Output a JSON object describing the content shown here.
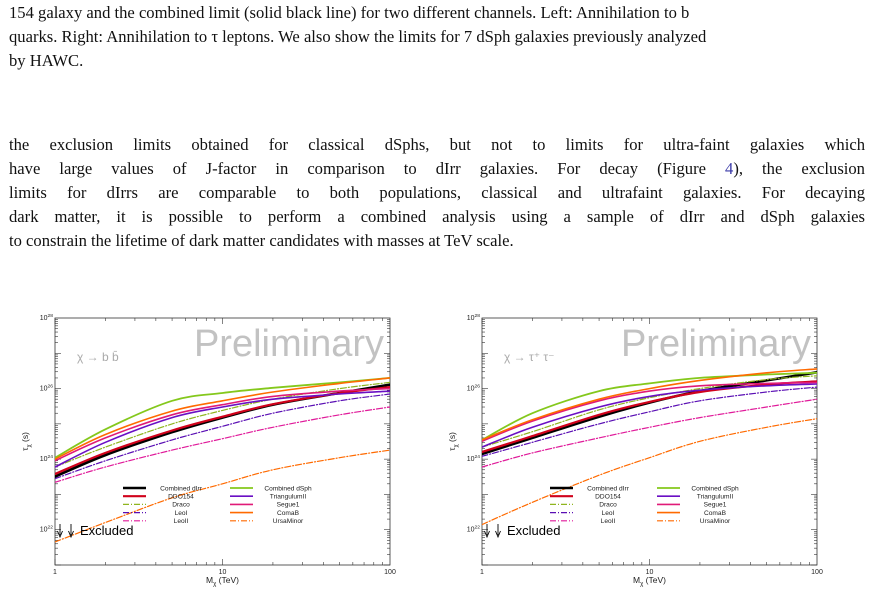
{
  "caption": {
    "lines": [
      "154 galaxy and the combined limit (solid black line) for two different channels. Left: Annihilation to b",
      "quarks. Right: Annihilation to τ leptons. We also show the limits for 7 dSph galaxies previously analyzed",
      "by HAWC."
    ]
  },
  "paragraph": {
    "line1": "the exclusion limits obtained for classical dSphs, but not to limits for ultra-faint galaxies which",
    "line2": "have large values of J-factor in comparison to dIrr galaxies. For decay (Figure",
    "line2_ref": "4",
    "line2_end": "), the exclusion",
    "line3": "limits for dIrrs are comparable to both populations, classical and ultrafaint galaxies. For decaying",
    "line4": "dark matter, it is possible to perform a combined analysis using a sample of dIrr and dSph galaxies",
    "line5": "to constrain the lifetime of dark matter candidates with masses at TeV scale."
  },
  "chart_data": [
    {
      "type": "line",
      "channel_label": "χ → b b̄",
      "watermark": "Preliminary",
      "xlabel": "Mχ (TeV)",
      "ylabel": "τχ (s)",
      "xscale": "log",
      "yscale": "log",
      "xlim": [
        1,
        100
      ],
      "ylim": [
        1e+21,
        1e+28
      ],
      "x_ticks": [
        "1",
        "10",
        "100"
      ],
      "y_ticks": [
        "10^22",
        "10^24",
        "10^26",
        "10^28"
      ],
      "excluded_label": "Excluded",
      "legend_location": "lower-right",
      "x": [
        1,
        2,
        5,
        10,
        20,
        50,
        100
      ],
      "series": [
        {
          "name": "Combined dIrr",
          "color": "#000000",
          "dash": "solid",
          "width": 2.6,
          "values": [
            3.2e+23,
            1.3e+24,
            5.8e+24,
            1.5e+25,
            3.5e+25,
            7.5e+25,
            1.3e+26
          ]
        },
        {
          "name": "DDO154",
          "color": "#d0021b",
          "dash": "solid",
          "width": 2.2,
          "values": [
            3.8e+23,
            1.5e+24,
            6.5e+24,
            1.6e+25,
            3.6e+25,
            7.4e+25,
            1.1e+26
          ]
        },
        {
          "name": "Draco",
          "color": "#8fb51e",
          "dash": "6,2,1,2",
          "width": 1.2,
          "values": [
            6e+23,
            2.2e+24,
            1e+25,
            2.4e+25,
            5e+25,
            1e+26,
            1.5e+26
          ]
        },
        {
          "name": "LeoI",
          "color": "#5a0fb4",
          "dash": "6,2,1,2",
          "width": 1.2,
          "values": [
            2.8e+23,
            9e+23,
            3.5e+24,
            8.5e+24,
            2e+25,
            4.5e+25,
            7e+25
          ]
        },
        {
          "name": "LeoII",
          "color": "#e01a9a",
          "dash": "6,2,1,2",
          "width": 1.2,
          "values": [
            2.2e+23,
            6e+23,
            1.8e+24,
            3.8e+24,
            8e+24,
            1.8e+25,
            3e+25
          ]
        },
        {
          "name": "Combined dSph",
          "color": "#84c81c",
          "dash": "solid",
          "width": 1.8,
          "values": [
            1.1e+24,
            7e+24,
            4.5e+25,
            7.5e+25,
            1.05e+26,
            1.5e+26,
            2e+26
          ]
        },
        {
          "name": "TriangulumII",
          "color": "#6a0fc4",
          "dash": "solid",
          "width": 1.6,
          "values": [
            6e+23,
            3e+24,
            1.5e+25,
            3e+25,
            5e+25,
            7e+25,
            8.5e+25
          ]
        },
        {
          "name": "Segue1",
          "color": "#e01a78",
          "dash": "solid",
          "width": 1.6,
          "values": [
            9e+23,
            4e+24,
            1.8e+25,
            3.5e+25,
            6e+25,
            8.5e+25,
            1e+26
          ]
        },
        {
          "name": "ComaB",
          "color": "#ff6a00",
          "dash": "solid",
          "width": 1.6,
          "values": [
            1e+24,
            5e+24,
            2.3e+25,
            4.5e+25,
            8e+25,
            1.4e+26,
            2e+26
          ]
        },
        {
          "name": "UrsaMinor",
          "color": "#ff6a00",
          "dash": "6,2,1,2",
          "width": 1.2,
          "values": [
            4.5e+21,
            1.6e+22,
            8e+22,
            2e+23,
            5e+23,
            1.1e+24,
            1.8e+24
          ]
        }
      ]
    },
    {
      "type": "line",
      "channel_label": "χ → τ⁺ τ⁻",
      "watermark": "Preliminary",
      "xlabel": "Mχ (TeV)",
      "ylabel": "τχ (s)",
      "xscale": "log",
      "yscale": "log",
      "xlim": [
        1,
        100
      ],
      "ylim": [
        1e+21,
        1e+28
      ],
      "x_ticks": [
        "1",
        "10",
        "100"
      ],
      "y_ticks": [
        "10^22",
        "10^24",
        "10^26",
        "10^28"
      ],
      "excluded_label": "Excluded",
      "legend_location": "lower-right",
      "x": [
        1,
        2,
        5,
        10,
        20,
        50,
        100
      ],
      "series": [
        {
          "name": "Combined dIrr",
          "color": "#000000",
          "dash": "solid",
          "width": 2.6,
          "values": [
            1.4e+24,
            4e+24,
            1.6e+25,
            4e+25,
            8.5e+25,
            1.7e+26,
            2.9e+26
          ]
        },
        {
          "name": "DDO154",
          "color": "#d0021b",
          "dash": "solid",
          "width": 2.2,
          "values": [
            1.6e+24,
            4.5e+24,
            1.8e+25,
            4.2e+25,
            8e+25,
            1.3e+26,
            1.6e+26
          ]
        },
        {
          "name": "Draco",
          "color": "#8fb51e",
          "dash": "6,2,1,2",
          "width": 1.2,
          "values": [
            2.2e+24,
            6e+24,
            2.5e+25,
            5.5e+25,
            1e+26,
            1.8e+26,
            2.3e+26
          ]
        },
        {
          "name": "LeoI",
          "color": "#5a0fb4",
          "dash": "6,2,1,2",
          "width": 1.2,
          "values": [
            1.2e+24,
            3e+24,
            1e+25,
            2.2e+25,
            4.5e+25,
            8e+25,
            1.1e+26
          ]
        },
        {
          "name": "LeoII",
          "color": "#e01a9a",
          "dash": "6,2,1,2",
          "width": 1.2,
          "values": [
            6e+23,
            1.5e+24,
            4e+24,
            8e+24,
            1.5e+25,
            3e+25,
            5e+25
          ]
        },
        {
          "name": "Combined dSph",
          "color": "#84c81c",
          "dash": "solid",
          "width": 1.8,
          "values": [
            3.5e+24,
            2e+25,
            8.5e+25,
            1.4e+26,
            2e+26,
            2.5e+26,
            2.8e+26
          ]
        },
        {
          "name": "TriangulumII",
          "color": "#6a0fc4",
          "dash": "solid",
          "width": 1.6,
          "values": [
            2.2e+24,
            8e+24,
            3e+25,
            6e+25,
            9e+25,
            1.2e+26,
            1.35e+26
          ]
        },
        {
          "name": "Segue1",
          "color": "#e01a78",
          "dash": "solid",
          "width": 1.6,
          "values": [
            3.2e+24,
            1.2e+25,
            4.5e+25,
            8.5e+25,
            1.2e+26,
            1.4e+26,
            1.5e+26
          ]
        },
        {
          "name": "ComaB",
          "color": "#ff6a00",
          "dash": "solid",
          "width": 1.6,
          "values": [
            3.5e+24,
            1.3e+25,
            5e+25,
            1e+26,
            1.7e+26,
            2.8e+26,
            3.6e+26
          ]
        },
        {
          "name": "UrsaMinor",
          "color": "#ff6a00",
          "dash": "6,2,1,2",
          "width": 1.2,
          "values": [
            1.4e+22,
            6e+22,
            3.5e+23,
            1.1e+24,
            3.2e+24,
            8e+24,
            1.4e+25
          ]
        }
      ]
    }
  ]
}
